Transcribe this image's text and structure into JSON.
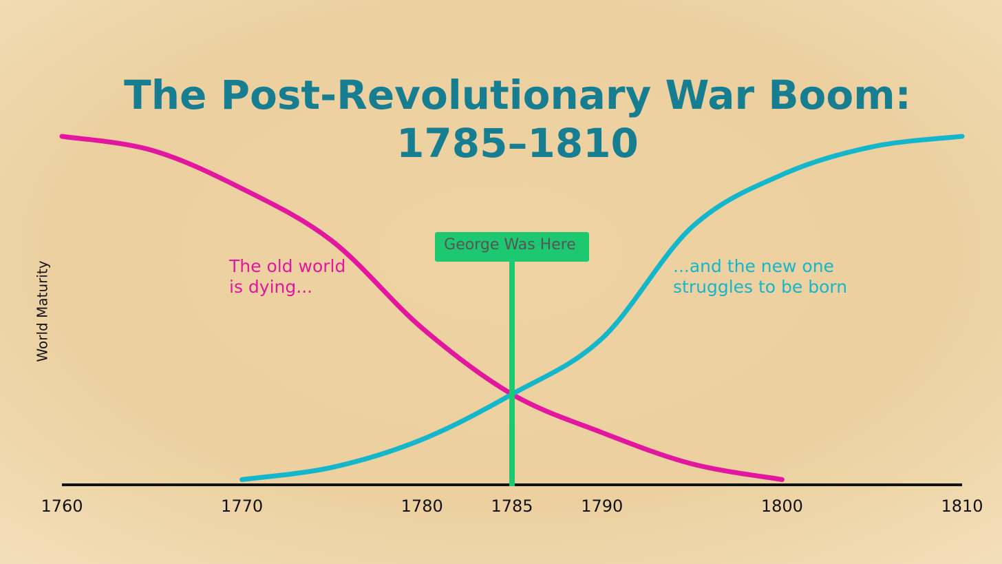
{
  "chart_data": {
    "type": "line",
    "title": [
      "The Post-Revolutionary War Boom:",
      "1785–1810"
    ],
    "y_label": "World Maturity",
    "xlim": [
      1760,
      1810
    ],
    "xticks": [
      1760,
      1770,
      1780,
      1785,
      1790,
      1800,
      1810
    ],
    "ylim": [
      0,
      100
    ],
    "series": [
      {
        "color": "#e3179f",
        "x": [
          1760,
          1765,
          1770,
          1775,
          1780,
          1785,
          1790,
          1795,
          1800
        ],
        "values": [
          100,
          96,
          85,
          70,
          45,
          26,
          15,
          6,
          1.5
        ]
      },
      {
        "color": "#14b6cc",
        "x": [
          1770,
          1775,
          1780,
          1785,
          1790,
          1795,
          1800,
          1805,
          1810
        ],
        "values": [
          1.5,
          5,
          13,
          26,
          42,
          74,
          89,
          97,
          100
        ]
      }
    ],
    "annotations": [
      {
        "lines": [
          "The old world",
          "is dying..."
        ],
        "color": "#e3179f"
      },
      {
        "lines": [
          "...and the new one",
          "struggles to be born"
        ],
        "color": "#14b6cc"
      }
    ],
    "marker": {
      "x": 1785,
      "label": "George Was Here",
      "color": "#1dc870"
    }
  }
}
